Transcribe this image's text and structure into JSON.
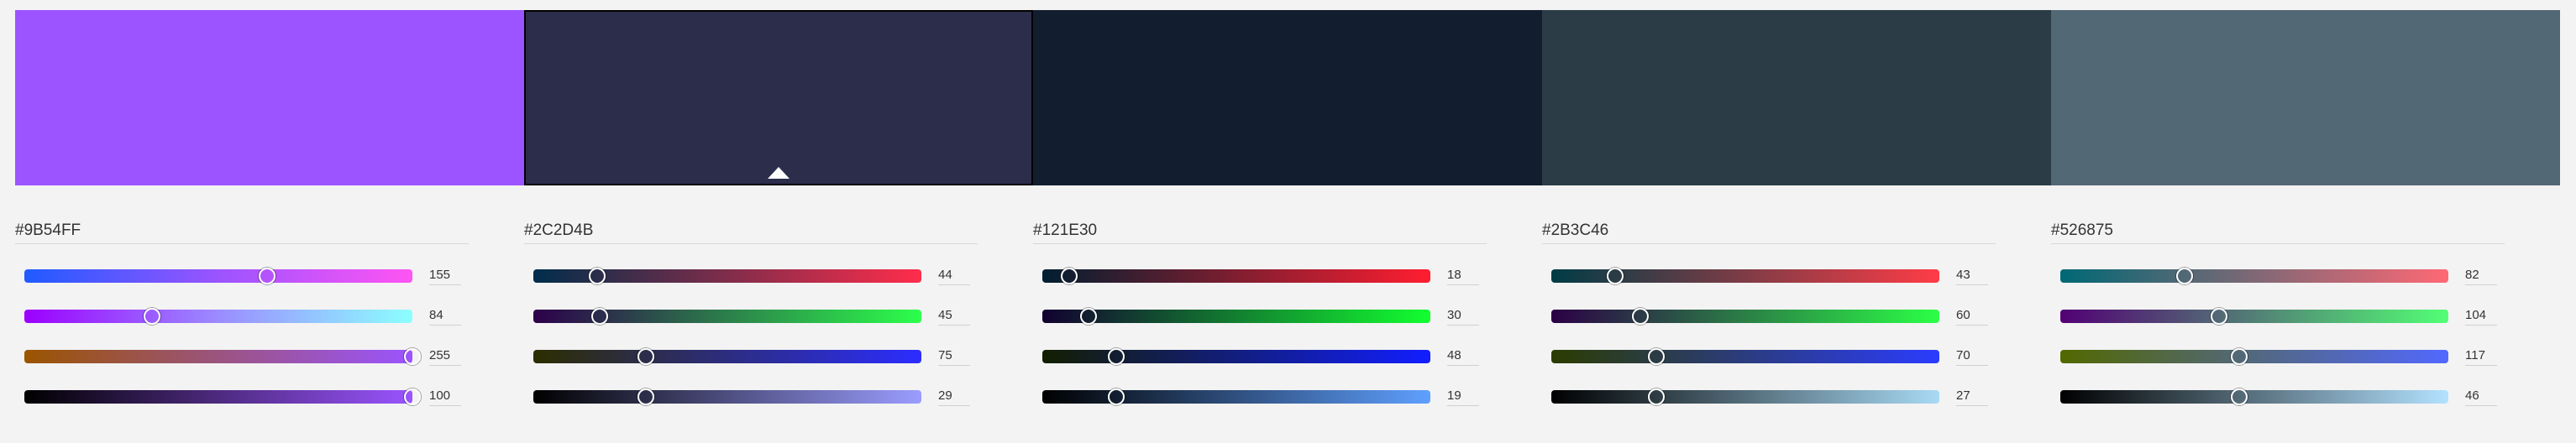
{
  "swatches": [
    {
      "hex": "#9B54FF",
      "color": "#9B54FF",
      "selected": false
    },
    {
      "hex": "#2C2D4B",
      "color": "#2C2D4B",
      "selected": true
    },
    {
      "hex": "#121E30",
      "color": "#121E30",
      "selected": false
    },
    {
      "hex": "#2B3C46",
      "color": "#2B3C46",
      "selected": false
    },
    {
      "hex": "#526875",
      "color": "#526875",
      "selected": false
    }
  ],
  "panels": [
    {
      "hex": "#9B54FF",
      "sliders": [
        {
          "channel": "hue",
          "value": "155",
          "fraction": 0.625,
          "gradient": [
            "#1F5BFF",
            "#9B54FF",
            "#FF54F3"
          ]
        },
        {
          "channel": "saturation",
          "value": "84",
          "fraction": 0.33,
          "gradient": [
            "#9B00FF",
            "#9B8CFF",
            "#8CFFFF"
          ]
        },
        {
          "channel": "lightness",
          "value": "255",
          "fraction": 1.0,
          "gradient": [
            "#9B5400",
            "#9B54FF"
          ]
        },
        {
          "channel": "value",
          "value": "100",
          "fraction": 1.0,
          "gradient": [
            "#000000",
            "#9B54FF"
          ]
        }
      ]
    },
    {
      "hex": "#2C2D4B",
      "sliders": [
        {
          "channel": "red",
          "value": "44",
          "fraction": 0.165,
          "gradient": [
            "#002D4B",
            "#FF2D4B"
          ]
        },
        {
          "channel": "green",
          "value": "45",
          "fraction": 0.17,
          "gradient": [
            "#2C004B",
            "#2CFF4B"
          ]
        },
        {
          "channel": "blue",
          "value": "75",
          "fraction": 0.29,
          "gradient": [
            "#2C2D00",
            "#2C2DFF"
          ]
        },
        {
          "channel": "lightness",
          "value": "29",
          "fraction": 0.29,
          "gradient": [
            "#000000",
            "#9B9DFF"
          ]
        }
      ]
    },
    {
      "hex": "#121E30",
      "sliders": [
        {
          "channel": "red",
          "value": "18",
          "fraction": 0.07,
          "gradient": [
            "#001E30",
            "#FF1E30"
          ]
        },
        {
          "channel": "green",
          "value": "30",
          "fraction": 0.12,
          "gradient": [
            "#120030",
            "#12FF30"
          ]
        },
        {
          "channel": "blue",
          "value": "48",
          "fraction": 0.19,
          "gradient": [
            "#121E00",
            "#121EFF"
          ]
        },
        {
          "channel": "lightness",
          "value": "19",
          "fraction": 0.19,
          "gradient": [
            "#000000",
            "#5FA0FF"
          ]
        }
      ]
    },
    {
      "hex": "#2B3C46",
      "sliders": [
        {
          "channel": "red",
          "value": "43",
          "fraction": 0.165,
          "gradient": [
            "#003C46",
            "#FF3C46"
          ]
        },
        {
          "channel": "green",
          "value": "60",
          "fraction": 0.23,
          "gradient": [
            "#2B0046",
            "#2BFF46"
          ]
        },
        {
          "channel": "blue",
          "value": "70",
          "fraction": 0.27,
          "gradient": [
            "#2B3C00",
            "#2B3CFF"
          ]
        },
        {
          "channel": "lightness",
          "value": "27",
          "fraction": 0.27,
          "gradient": [
            "#000000",
            "#A8DAF5"
          ]
        }
      ]
    },
    {
      "hex": "#526875",
      "sliders": [
        {
          "channel": "red",
          "value": "82",
          "fraction": 0.32,
          "gradient": [
            "#006875",
            "#FF6875"
          ]
        },
        {
          "channel": "green",
          "value": "104",
          "fraction": 0.41,
          "gradient": [
            "#520075",
            "#52FF75"
          ]
        },
        {
          "channel": "blue",
          "value": "117",
          "fraction": 0.46,
          "gradient": [
            "#526800",
            "#5268FF"
          ]
        },
        {
          "channel": "lightness",
          "value": "46",
          "fraction": 0.46,
          "gradient": [
            "#000000",
            "#B3E2FF"
          ]
        }
      ]
    }
  ]
}
